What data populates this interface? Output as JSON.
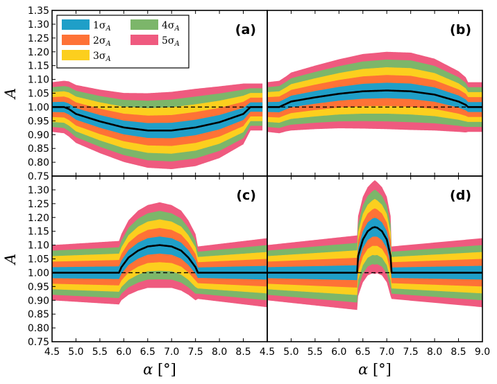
{
  "chart_data": {
    "type": "area",
    "layout": "2x2 shared axes",
    "colors": {
      "band1": "#1f9fc8",
      "band2": "#fe7236",
      "band3": "#fccf1e",
      "band4": "#7cb66a",
      "band5": "#ef5a7f",
      "central": "#000000",
      "reference": "#000000"
    },
    "legend": {
      "placement": "top-left of panel (a)",
      "columns": 2,
      "entries": [
        {
          "main": "1σ",
          "sub": "A",
          "color_key": "band1"
        },
        {
          "main": "2σ",
          "sub": "A",
          "color_key": "band2"
        },
        {
          "main": "3σ",
          "sub": "A",
          "color_key": "band3"
        },
        {
          "main": "4σ",
          "sub": "A",
          "color_key": "band4"
        },
        {
          "main": "5σ",
          "sub": "A",
          "color_key": "band5"
        }
      ]
    },
    "xlabel": "α",
    "xunit": "[°]",
    "ylabel": "A",
    "xlim": [
      4.5,
      9.0
    ],
    "ylim": [
      0.75,
      1.35
    ],
    "xticks_left": [
      "4.5",
      "5.0",
      "5.5",
      "6.0",
      "6.5",
      "7.0",
      "7.5",
      "8.0",
      "8.5"
    ],
    "xticks_right": [
      "4.5",
      "5.0",
      "5.5",
      "6.0",
      "6.5",
      "7.0",
      "7.5",
      "8.0",
      "8.5",
      "9.0"
    ],
    "yticks_top": [
      "0.75",
      "0.80",
      "0.85",
      "0.90",
      "0.95",
      "1.00",
      "1.05",
      "1.10",
      "1.15",
      "1.20",
      "1.25",
      "1.30",
      "1.35"
    ],
    "yticks_bottom": [
      "0.75",
      "0.80",
      "0.85",
      "0.90",
      "0.95",
      "1.00",
      "1.05",
      "1.10",
      "1.15",
      "1.20",
      "1.25",
      "1.30"
    ],
    "reference_line": 1.0,
    "panels": [
      {
        "tag": "(a)",
        "xlim": [
          4.5,
          8.9
        ],
        "ylim": [
          0.75,
          1.35
        ],
        "x": [
          4.5,
          4.75,
          4.85,
          5.0,
          5.5,
          6.0,
          6.5,
          7.0,
          7.5,
          8.0,
          8.5,
          8.65,
          8.9
        ],
        "central": [
          1.0,
          1.0,
          0.993,
          0.975,
          0.948,
          0.926,
          0.915,
          0.915,
          0.926,
          0.945,
          0.975,
          1.0,
          1.0
        ],
        "band_width": [
          0.018,
          0.019,
          0.02,
          0.021,
          0.023,
          0.025,
          0.027,
          0.028,
          0.028,
          0.026,
          0.022,
          0.017,
          0.017
        ]
      },
      {
        "tag": "(b)",
        "xlim": [
          4.5,
          9.0
        ],
        "ylim": [
          0.75,
          1.35
        ],
        "x": [
          4.5,
          4.75,
          4.9,
          5.0,
          5.5,
          6.0,
          6.5,
          7.0,
          7.5,
          8.0,
          8.5,
          8.65,
          8.7,
          9.0
        ],
        "central": [
          1.0,
          1.0,
          1.012,
          1.02,
          1.035,
          1.048,
          1.057,
          1.06,
          1.057,
          1.045,
          1.02,
          1.008,
          1.0,
          1.0
        ],
        "band_width": [
          0.018,
          0.019,
          0.02,
          0.021,
          0.023,
          0.025,
          0.027,
          0.028,
          0.028,
          0.026,
          0.022,
          0.02,
          0.018,
          0.018
        ]
      },
      {
        "tag": "(c)",
        "xlim": [
          4.5,
          9.0
        ],
        "ylim": [
          0.75,
          1.35
        ],
        "x": [
          4.5,
          5.9,
          5.95,
          6.1,
          6.3,
          6.5,
          6.75,
          7.0,
          7.2,
          7.35,
          7.5,
          7.55,
          9.0
        ],
        "central": [
          1.0,
          1.0,
          1.02,
          1.055,
          1.08,
          1.095,
          1.1,
          1.095,
          1.08,
          1.055,
          1.02,
          1.0,
          1.0
        ],
        "band_width": [
          0.02,
          0.023,
          0.024,
          0.027,
          0.029,
          0.03,
          0.031,
          0.03,
          0.029,
          0.027,
          0.024,
          0.019,
          0.025
        ]
      },
      {
        "tag": "(d)",
        "xlim": [
          4.5,
          9.0
        ],
        "ylim": [
          0.75,
          1.35
        ],
        "x": [
          4.5,
          6.38,
          6.4,
          6.5,
          6.6,
          6.7,
          6.75,
          6.8,
          6.9,
          7.0,
          7.08,
          7.1,
          9.0
        ],
        "central": [
          1.0,
          1.0,
          1.06,
          1.12,
          1.15,
          1.163,
          1.165,
          1.163,
          1.15,
          1.12,
          1.06,
          1.0,
          1.0
        ],
        "band_width": [
          0.02,
          0.027,
          0.029,
          0.031,
          0.032,
          0.033,
          0.034,
          0.033,
          0.032,
          0.031,
          0.029,
          0.019,
          0.025
        ]
      }
    ]
  }
}
